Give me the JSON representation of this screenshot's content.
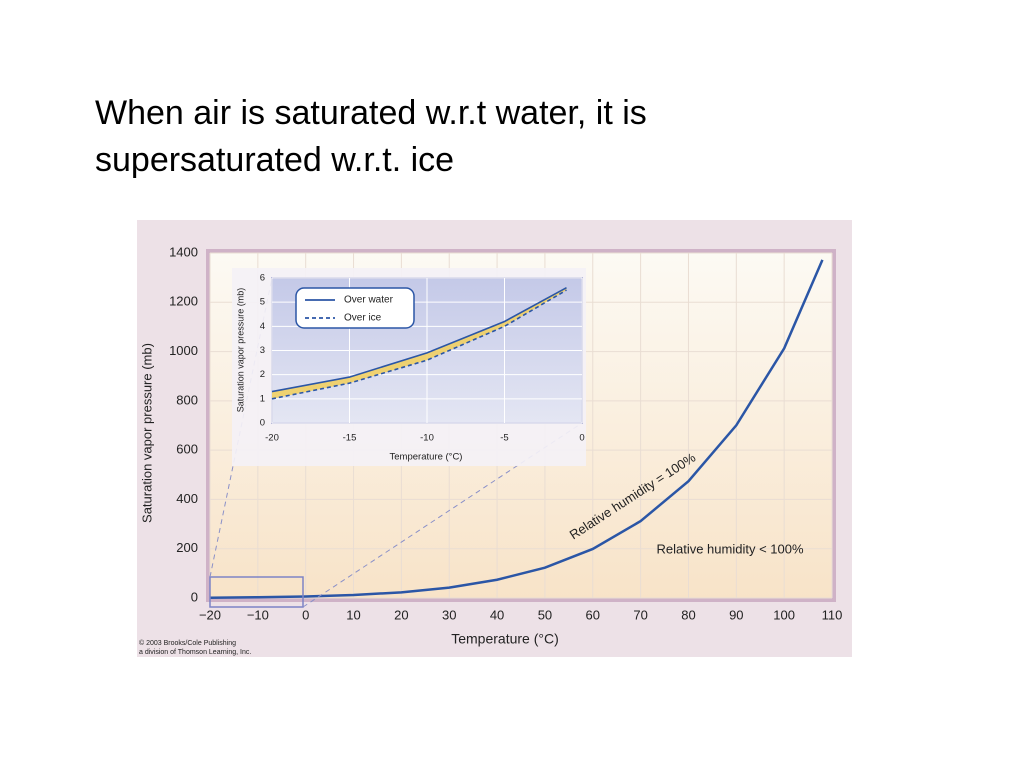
{
  "slide": {
    "title": [
      "When air is saturated w.r.t water, it is",
      "supersaturated w.r.t. ice"
    ],
    "credit": [
      "© 2003 Brooks/Cole Publishing",
      "a division of Thomson Learning, Inc."
    ]
  },
  "chart_data": [
    {
      "type": "line",
      "x_label": "Temperature (°C)",
      "y_label": "Saturation vapor pressure (mb)",
      "x": [
        -20,
        -10,
        0,
        10,
        20,
        30,
        40,
        50,
        60,
        70,
        80,
        90,
        100,
        108
      ],
      "series": [
        {
          "color": "#2b56a6",
          "values": [
            1,
            3,
            6,
            12,
            23,
            42,
            74,
            123,
            199,
            312,
            474,
            701,
            1013,
            1372
          ]
        }
      ],
      "xlim": [
        -20,
        110
      ],
      "ylim": [
        0,
        1400
      ],
      "xticks": [
        {
          "value": -20,
          "label": "−20"
        },
        {
          "value": -10,
          "label": "−10"
        },
        0,
        10,
        20,
        30,
        40,
        50,
        60,
        70,
        80,
        90,
        100,
        110
      ],
      "yticks": [
        0,
        200,
        400,
        600,
        800,
        1000,
        1200,
        1400
      ],
      "grid": true,
      "annotations": [
        "Relative humidity = 100%",
        "Relative humidity < 100%"
      ]
    },
    {
      "type": "line",
      "x_label": "Temperature (°C)",
      "y_label": "Saturation vapor pressure (mb)",
      "x": [
        -20,
        -15,
        -10,
        -5,
        -1
      ],
      "series": [
        {
          "name": "Over water",
          "color": "#2b56a6",
          "line_style": "solid",
          "values": [
            1.3,
            1.9,
            2.9,
            4.2,
            5.6
          ]
        },
        {
          "name": "Over ice",
          "color": "#2b56a6",
          "line_style": "dashed",
          "values": [
            1.0,
            1.65,
            2.6,
            4.0,
            5.5
          ]
        }
      ],
      "fill_between_color": "#f2cf5a",
      "xlim": [
        -20,
        0
      ],
      "ylim": [
        0,
        6
      ],
      "xticks": [
        -20,
        -15,
        -10,
        -5,
        0
      ],
      "yticks": [
        0,
        1,
        2,
        3,
        4,
        5,
        6
      ],
      "grid": true,
      "legend": "upper left"
    }
  ]
}
